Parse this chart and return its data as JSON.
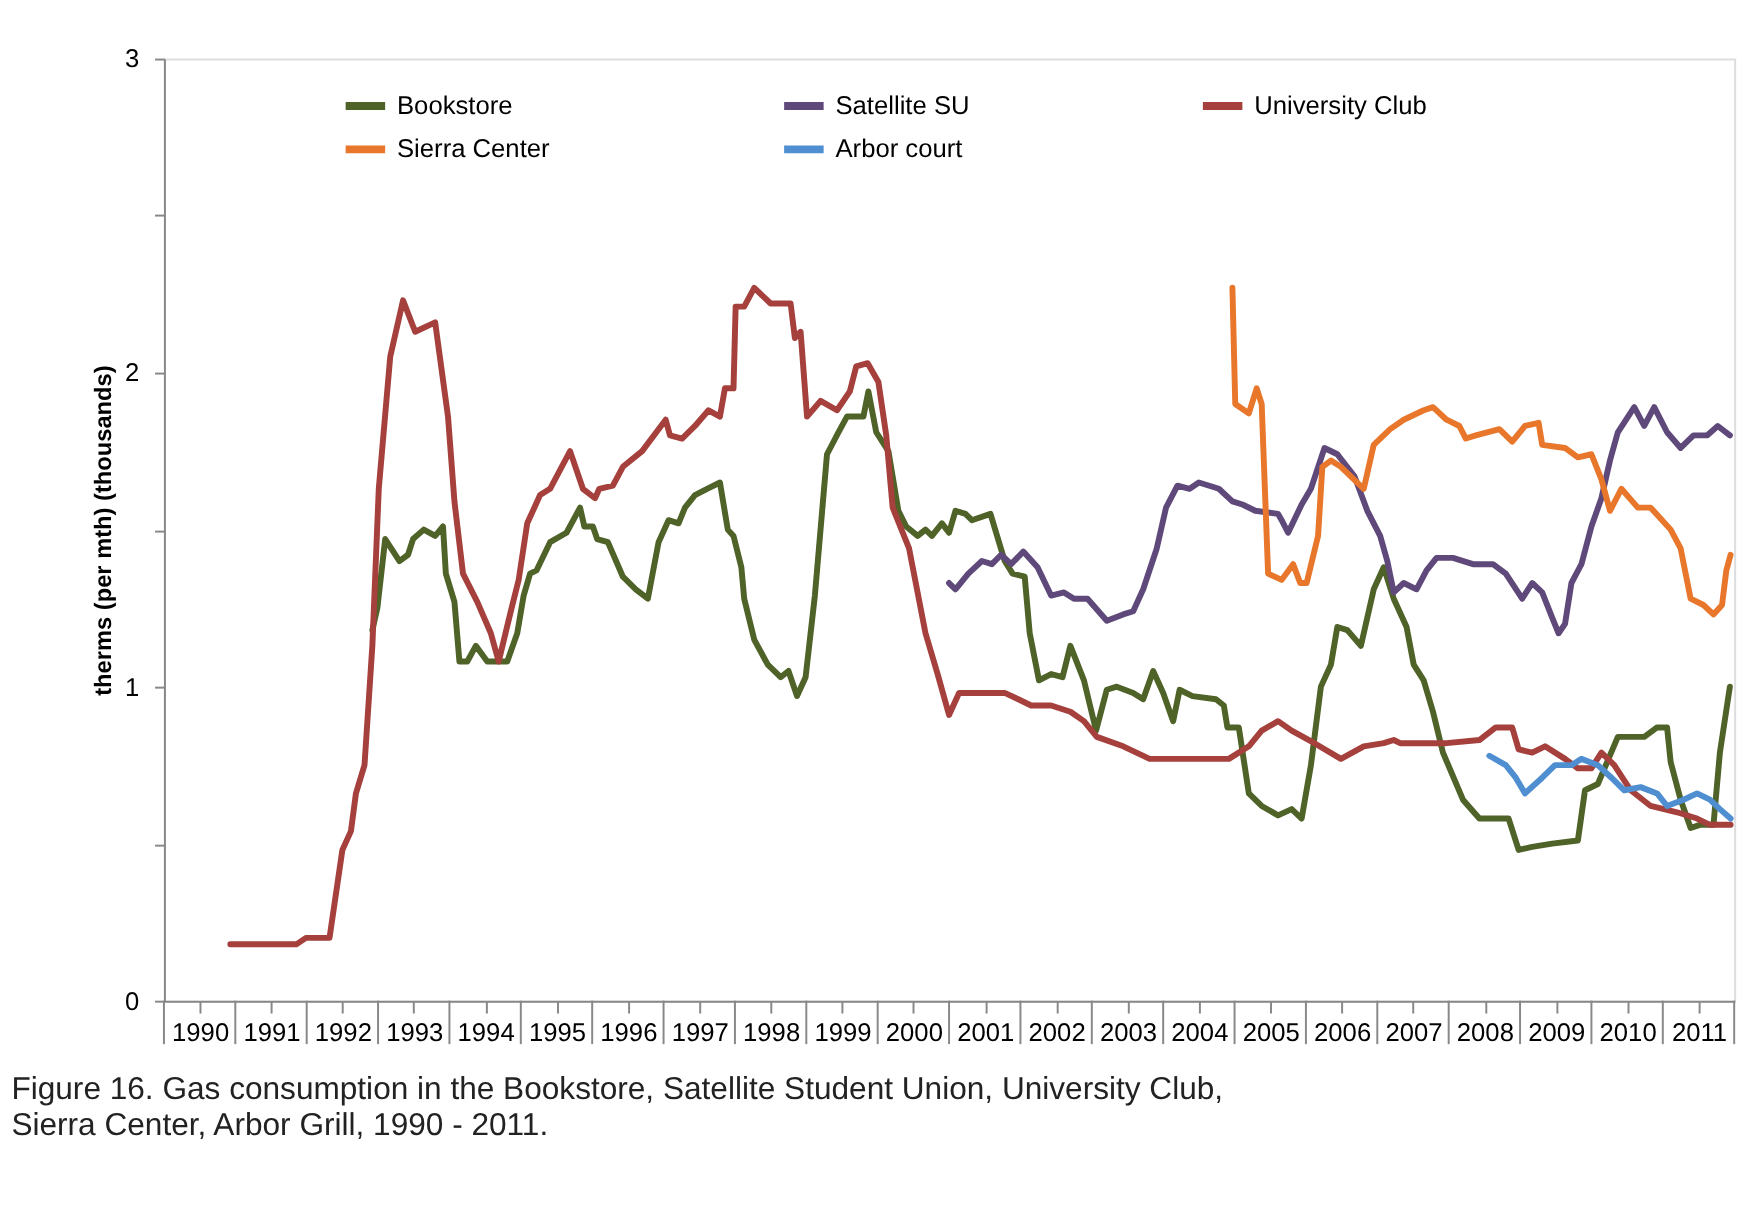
{
  "chart_data": {
    "type": "line",
    "ylabel": "therms (per mth) (thousands)",
    "annotations": [
      "Figure 16. Gas consumption in the Bookstore, Satellite Student Union, University Club, Sierra Center, Arbor Grill, 1990 - 2011."
    ],
    "xlim": [
      1990,
      2012
    ],
    "ylim": [
      0,
      3
    ],
    "yticks": [
      0,
      {
        "value": 0.5,
        "label": null
      },
      1,
      {
        "value": 1.5,
        "label": null
      },
      2,
      {
        "value": 2.5,
        "label": null
      },
      3
    ],
    "xticks": [
      {
        "value": 1990.5,
        "label": "1990"
      },
      {
        "value": 1991.5,
        "label": "1991"
      },
      {
        "value": 1992.5,
        "label": "1992"
      },
      {
        "value": 1993.5,
        "label": "1993"
      },
      {
        "value": 1994.5,
        "label": "1994"
      },
      {
        "value": 1995.5,
        "label": "1995"
      },
      {
        "value": 1996.5,
        "label": "1996"
      },
      {
        "value": 1997.5,
        "label": "1997"
      },
      {
        "value": 1998.5,
        "label": "1998"
      },
      {
        "value": 1999.5,
        "label": "1999"
      },
      {
        "value": 2000.5,
        "label": "2000"
      },
      {
        "value": 2001.5,
        "label": "2001"
      },
      {
        "value": 2002.5,
        "label": "2002"
      },
      {
        "value": 2003.5,
        "label": "2003"
      },
      {
        "value": 2004.5,
        "label": "2004"
      },
      {
        "value": 2005.5,
        "label": "2005"
      },
      {
        "value": 2006.5,
        "label": "2006"
      },
      {
        "value": 2007.5,
        "label": "2007"
      },
      {
        "value": 2008.5,
        "label": "2008"
      },
      {
        "value": 2009.5,
        "label": "2009"
      },
      {
        "value": 2010.5,
        "label": "2010"
      },
      {
        "value": 2011.5,
        "label": "2011"
      }
    ],
    "grid": false,
    "legend": "top",
    "marker": "none",
    "line_style": "solid",
    "series": [
      {
        "name": "Bookstore",
        "color": "#4f6228",
        "x": [
          1992.92,
          1992.99,
          1993.1,
          1993.3,
          1993.42,
          1993.49,
          1993.64,
          1993.8,
          1993.91,
          1993.95,
          1994.07,
          1994.14,
          1994.25,
          1994.37,
          1994.53,
          1994.81,
          1994.95,
          1995.04,
          1995.13,
          1995.22,
          1995.41,
          1995.64,
          1995.83,
          1995.89,
          1996.01,
          1996.07,
          1996.22,
          1996.43,
          1996.61,
          1996.78,
          1996.93,
          1997.07,
          1997.21,
          1997.3,
          1997.44,
          1997.61,
          1997.79,
          1997.9,
          1997.98,
          1998.09,
          1998.13,
          1998.27,
          1998.46,
          1998.64,
          1998.75,
          1998.87,
          1998.99,
          1999.12,
          1999.29,
          1999.45,
          1999.57,
          1999.8,
          1999.87,
          1999.98,
          2000.15,
          2000.29,
          2000.4,
          2000.56,
          2000.67,
          2000.76,
          2000.9,
          2001.0,
          2001.09,
          2001.23,
          2001.32,
          2001.58,
          2001.78,
          2001.89,
          2002.06,
          2002.13,
          2002.26,
          2002.43,
          2002.59,
          2002.7,
          2002.89,
          2003.06,
          2003.21,
          2003.35,
          2003.58,
          2003.72,
          2003.86,
          2004.0,
          2004.14,
          2004.23,
          2004.41,
          2004.74,
          2004.85,
          2004.9,
          2005.06,
          2005.2,
          2005.38,
          2005.61,
          2005.8,
          2005.94,
          2006.07,
          2006.21,
          2006.35,
          2006.44,
          2006.58,
          2006.77,
          2006.95,
          2007.09,
          2007.23,
          2007.41,
          2007.51,
          2007.65,
          2007.78,
          2007.92,
          2008.2,
          2008.43,
          2008.62,
          2008.84,
          2008.98,
          2009.17,
          2009.45,
          2009.81,
          2009.91,
          2010.09,
          2010.37,
          2010.74,
          2010.92,
          2011.06,
          2011.11,
          2011.25,
          2011.39,
          2011.52,
          2011.71,
          2011.8,
          2011.94
        ],
        "values": [
          1.18,
          1.25,
          1.47,
          1.4,
          1.42,
          1.47,
          1.5,
          1.48,
          1.51,
          1.36,
          1.27,
          1.08,
          1.08,
          1.13,
          1.08,
          1.08,
          1.17,
          1.29,
          1.36,
          1.37,
          1.46,
          1.49,
          1.57,
          1.51,
          1.51,
          1.47,
          1.46,
          1.35,
          1.31,
          1.28,
          1.46,
          1.53,
          1.52,
          1.57,
          1.61,
          1.63,
          1.65,
          1.5,
          1.48,
          1.38,
          1.28,
          1.15,
          1.07,
          1.03,
          1.05,
          0.97,
          1.03,
          1.29,
          1.74,
          1.81,
          1.86,
          1.86,
          1.94,
          1.81,
          1.75,
          1.56,
          1.51,
          1.48,
          1.5,
          1.48,
          1.52,
          1.49,
          1.56,
          1.55,
          1.53,
          1.55,
          1.4,
          1.36,
          1.35,
          1.17,
          1.02,
          1.04,
          1.03,
          1.13,
          1.02,
          0.86,
          0.99,
          1.0,
          0.98,
          0.96,
          1.05,
          0.98,
          0.89,
          0.99,
          0.97,
          0.96,
          0.94,
          0.87,
          0.87,
          0.66,
          0.62,
          0.59,
          0.61,
          0.58,
          0.75,
          1.0,
          1.07,
          1.19,
          1.18,
          1.13,
          1.31,
          1.38,
          1.28,
          1.19,
          1.07,
          1.02,
          0.92,
          0.79,
          0.64,
          0.58,
          0.58,
          0.58,
          0.48,
          0.49,
          0.5,
          0.51,
          0.67,
          0.69,
          0.84,
          0.84,
          0.87,
          0.87,
          0.76,
          0.64,
          0.55,
          0.56,
          0.56,
          0.79,
          1.0
        ]
      },
      {
        "name": "Satellite SU",
        "color": "#5f497a",
        "x": [
          2001.0,
          2001.09,
          2001.27,
          2001.46,
          2001.6,
          2001.73,
          2001.87,
          2002.04,
          2002.24,
          2002.43,
          2002.61,
          2002.75,
          2002.94,
          2003.21,
          2003.44,
          2003.58,
          2003.72,
          2003.91,
          2004.04,
          2004.2,
          2004.37,
          2004.5,
          2004.78,
          2004.97,
          2005.11,
          2005.29,
          2005.61,
          2005.66,
          2005.75,
          2005.94,
          2006.07,
          2006.26,
          2006.44,
          2006.68,
          2006.86,
          2007.04,
          2007.14,
          2007.23,
          2007.37,
          2007.55,
          2007.69,
          2007.83,
          2008.06,
          2008.34,
          2008.62,
          2008.8,
          2009.03,
          2009.17,
          2009.31,
          2009.45,
          2009.54,
          2009.63,
          2009.72,
          2009.86,
          2010.0,
          2010.14,
          2010.26,
          2010.37,
          2010.6,
          2010.74,
          2010.88,
          2011.06,
          2011.25,
          2011.43,
          2011.62,
          2011.77,
          2011.94
        ],
        "values": [
          1.33,
          1.31,
          1.36,
          1.4,
          1.39,
          1.42,
          1.39,
          1.43,
          1.38,
          1.29,
          1.3,
          1.28,
          1.28,
          1.21,
          1.23,
          1.24,
          1.31,
          1.44,
          1.57,
          1.64,
          1.63,
          1.65,
          1.63,
          1.59,
          1.58,
          1.56,
          1.55,
          1.53,
          1.49,
          1.58,
          1.63,
          1.76,
          1.74,
          1.67,
          1.56,
          1.48,
          1.4,
          1.3,
          1.33,
          1.31,
          1.37,
          1.41,
          1.41,
          1.39,
          1.39,
          1.36,
          1.28,
          1.33,
          1.3,
          1.22,
          1.17,
          1.2,
          1.33,
          1.39,
          1.51,
          1.6,
          1.72,
          1.81,
          1.89,
          1.83,
          1.89,
          1.81,
          1.76,
          1.8,
          1.8,
          1.83,
          1.8
        ]
      },
      {
        "name": "University Club",
        "color": "#a5403c",
        "x": [
          1990.93,
          1991.86,
          1991.99,
          1992.32,
          1992.5,
          1992.62,
          1992.69,
          1992.81,
          1992.92,
          1993.01,
          1993.17,
          1993.35,
          1993.52,
          1993.8,
          1993.98,
          1994.07,
          1994.19,
          1994.39,
          1994.58,
          1994.69,
          1994.86,
          1994.97,
          1995.09,
          1995.27,
          1995.41,
          1995.69,
          1995.87,
          1996.04,
          1996.1,
          1996.29,
          1996.43,
          1996.7,
          1997.03,
          1997.09,
          1997.26,
          1997.44,
          1997.63,
          1997.79,
          1997.86,
          1997.98,
          1998.01,
          1998.13,
          1998.27,
          1998.5,
          1998.78,
          1998.84,
          1998.92,
          1999.01,
          1999.2,
          1999.43,
          1999.61,
          1999.7,
          1999.86,
          2000.01,
          2000.12,
          2000.21,
          2000.44,
          2000.67,
          2000.84,
          2001.0,
          2001.14,
          2001.41,
          2001.78,
          2001.97,
          2002.15,
          2002.43,
          2002.7,
          2002.89,
          2003.07,
          2003.44,
          2003.81,
          2004.0,
          2004.37,
          2004.55,
          2004.92,
          2005.2,
          2005.38,
          2005.61,
          2005.8,
          2006.12,
          2006.49,
          2006.81,
          2007.09,
          2007.23,
          2007.32,
          2007.97,
          2008.43,
          2008.66,
          2008.89,
          2008.98,
          2009.17,
          2009.35,
          2009.63,
          2009.81,
          2010.0,
          2010.14,
          2010.32,
          2010.55,
          2010.83,
          2011.2,
          2011.48,
          2011.66,
          2011.95
        ],
        "values": [
          0.18,
          0.18,
          0.2,
          0.2,
          0.48,
          0.54,
          0.66,
          0.75,
          1.13,
          1.63,
          2.05,
          2.23,
          2.13,
          2.16,
          1.86,
          1.59,
          1.36,
          1.27,
          1.17,
          1.08,
          1.24,
          1.34,
          1.52,
          1.61,
          1.63,
          1.75,
          1.63,
          1.6,
          1.63,
          1.64,
          1.7,
          1.75,
          1.85,
          1.8,
          1.79,
          1.83,
          1.88,
          1.86,
          1.95,
          1.95,
          2.21,
          2.21,
          2.27,
          2.22,
          2.22,
          2.11,
          2.13,
          1.86,
          1.91,
          1.88,
          1.94,
          2.02,
          2.03,
          1.97,
          1.8,
          1.57,
          1.44,
          1.17,
          1.04,
          0.91,
          0.98,
          0.98,
          0.98,
          0.96,
          0.94,
          0.94,
          0.92,
          0.89,
          0.84,
          0.81,
          0.77,
          0.77,
          0.77,
          0.77,
          0.77,
          0.81,
          0.86,
          0.89,
          0.86,
          0.82,
          0.77,
          0.81,
          0.82,
          0.83,
          0.82,
          0.82,
          0.83,
          0.87,
          0.87,
          0.8,
          0.79,
          0.81,
          0.77,
          0.74,
          0.74,
          0.79,
          0.75,
          0.67,
          0.62,
          0.6,
          0.58,
          0.56,
          0.56
        ]
      },
      {
        "name": "Sierra Center",
        "color": "#e8762b",
        "x": [
          2004.97,
          2005.01,
          2005.2,
          2005.31,
          2005.38,
          2005.47,
          2005.66,
          2005.82,
          2005.92,
          2006.01,
          2006.17,
          2006.23,
          2006.35,
          2006.49,
          2006.81,
          2006.95,
          2007.18,
          2007.37,
          2007.65,
          2007.78,
          2007.97,
          2008.15,
          2008.24,
          2008.38,
          2008.71,
          2008.89,
          2009.07,
          2009.26,
          2009.31,
          2009.63,
          2009.81,
          2010.0,
          2010.14,
          2010.26,
          2010.42,
          2010.65,
          2010.83,
          2011.11,
          2011.25,
          2011.39,
          2011.57,
          2011.71,
          2011.83,
          2011.89,
          2011.95
        ],
        "values": [
          2.27,
          1.9,
          1.87,
          1.95,
          1.9,
          1.36,
          1.34,
          1.39,
          1.33,
          1.33,
          1.48,
          1.7,
          1.72,
          1.7,
          1.63,
          1.77,
          1.82,
          1.85,
          1.88,
          1.89,
          1.85,
          1.83,
          1.79,
          1.8,
          1.82,
          1.78,
          1.83,
          1.84,
          1.77,
          1.76,
          1.73,
          1.74,
          1.66,
          1.56,
          1.63,
          1.57,
          1.57,
          1.5,
          1.44,
          1.28,
          1.26,
          1.23,
          1.26,
          1.37,
          1.42
        ]
      },
      {
        "name": "Arbor court",
        "color": "#4f8ed0",
        "x": [
          2008.57,
          2008.8,
          2008.94,
          2009.07,
          2009.31,
          2009.49,
          2009.72,
          2009.86,
          2010.09,
          2010.28,
          2010.46,
          2010.69,
          2010.92,
          2011.06,
          2011.29,
          2011.48,
          2011.66,
          2011.8,
          2011.95
        ],
        "values": [
          0.78,
          0.75,
          0.71,
          0.66,
          0.71,
          0.75,
          0.75,
          0.77,
          0.75,
          0.71,
          0.67,
          0.68,
          0.66,
          0.62,
          0.64,
          0.66,
          0.64,
          0.61,
          0.58
        ]
      }
    ]
  }
}
